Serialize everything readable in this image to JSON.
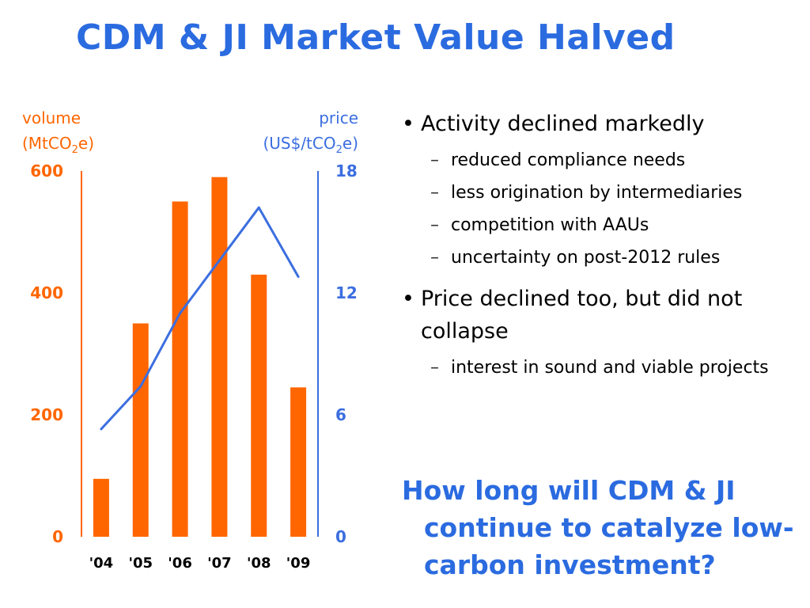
{
  "slide": {
    "title": "CDM & JI Market Value Halved",
    "bullets": [
      {
        "text": "Activity declined markedly",
        "subs": [
          "reduced compliance needs",
          "less origination by intermediaries",
          "competition with AAUs",
          "uncertainty on post-2012 rules"
        ]
      },
      {
        "text": "Price declined too, but did not collapse",
        "subs": [
          "interest in sound and viable projects"
        ]
      }
    ],
    "question": "How long will CDM & JI continue to catalyze low-carbon investment?",
    "bullet_glyph": "•",
    "dash_glyph": "–"
  },
  "colors": {
    "title": "#2b6be0",
    "volume": "#ff6600",
    "price": "#3b6ee0",
    "bars": "#ff6600",
    "line": "#3b6ee0"
  },
  "chart_data": {
    "type": "bar",
    "categories": [
      "'04",
      "'05",
      "'06",
      "'07",
      "'08",
      "'09"
    ],
    "series": [
      {
        "name": "volume",
        "kind": "bar",
        "axis": "left",
        "values": [
          95,
          350,
          550,
          590,
          430,
          245
        ]
      },
      {
        "name": "price",
        "kind": "line",
        "axis": "right",
        "values": [
          5.3,
          7.4,
          11.0,
          13.6,
          16.2,
          12.8
        ]
      }
    ],
    "left_axis": {
      "label_line1": "volume",
      "label_pre": "(MtCO",
      "label_sub": "2",
      "label_post": "e)",
      "range": [
        0,
        600
      ],
      "ticks": [
        "600",
        "400",
        "200",
        "0"
      ],
      "tick_values": [
        600,
        400,
        200,
        0
      ]
    },
    "right_axis": {
      "label_line1": "price",
      "label_pre": "(US$/tCO",
      "label_sub": "2",
      "label_post": "e)",
      "range": [
        0,
        18
      ],
      "ticks": [
        "18",
        "12",
        "6",
        "0"
      ],
      "tick_values": [
        18,
        12,
        6,
        0
      ]
    },
    "grid": false,
    "legend": "none"
  }
}
